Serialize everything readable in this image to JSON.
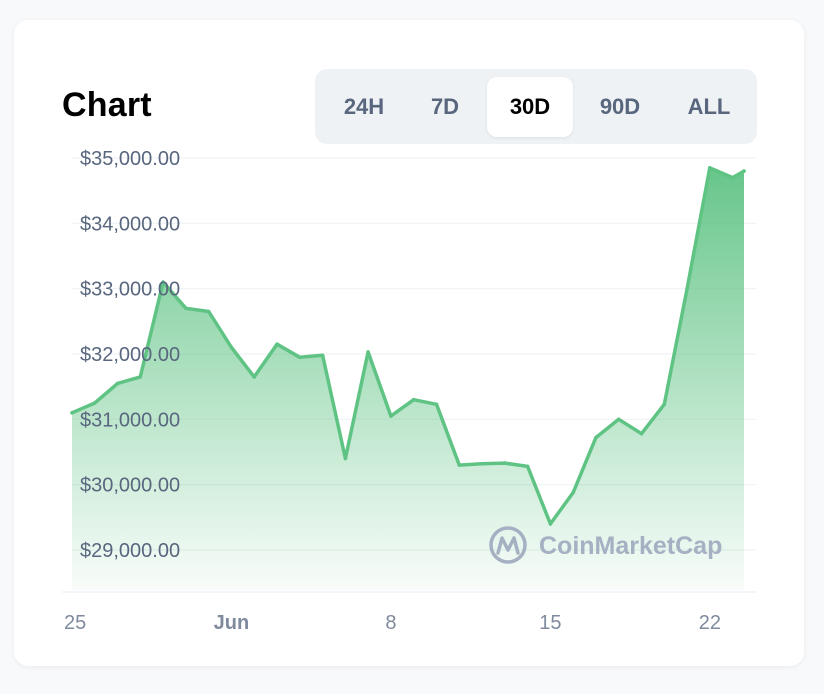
{
  "header": {
    "title": "Chart"
  },
  "range_selector": {
    "options": [
      "24H",
      "7D",
      "30D",
      "90D",
      "ALL"
    ],
    "active": "30D"
  },
  "watermark": {
    "text": "CoinMarketCap"
  },
  "colors": {
    "line": "#5fc384",
    "fill_top": "#5fc384",
    "grid": "#eff2f5",
    "tick": "#58667e"
  },
  "chart_data": {
    "type": "area",
    "title": "Chart",
    "x": [
      "2021-05-25",
      "2021-05-26",
      "2021-05-27",
      "2021-05-28",
      "2021-05-29",
      "2021-05-30",
      "2021-05-31",
      "2021-06-01",
      "2021-06-02",
      "2021-06-03",
      "2021-06-04",
      "2021-06-05",
      "2021-06-06",
      "2021-06-07",
      "2021-06-08",
      "2021-06-09",
      "2021-06-10",
      "2021-06-11",
      "2021-06-12",
      "2021-06-13",
      "2021-06-14",
      "2021-06-15",
      "2021-06-16",
      "2021-06-17",
      "2021-06-18",
      "2021-06-19",
      "2021-06-20",
      "2021-06-21",
      "2021-06-22",
      "2021-06-23"
    ],
    "values": [
      31100,
      31250,
      31550,
      31650,
      33100,
      32700,
      32650,
      32100,
      31650,
      32150,
      31950,
      31980,
      30400,
      32030,
      31050,
      31300,
      31230,
      30300,
      30320,
      30330,
      30280,
      29400,
      29880,
      30720,
      31000,
      30780,
      31230,
      33000,
      34850,
      34700
    ],
    "values_extra": {
      "x": "2021-06-23T12:00",
      "value": 34800
    },
    "yticks": [
      35000,
      34000,
      33000,
      32000,
      31000,
      30000,
      29000
    ],
    "ytick_labels": [
      "$35,000.00",
      "$34,000.00",
      "$33,000.00",
      "$32,000.00",
      "$31,000.00",
      "$30,000.00",
      "$29,000.00"
    ],
    "xticks": [
      {
        "x": "2021-05-25",
        "label": "25",
        "bold": false
      },
      {
        "x": "2021-06-01",
        "label": "Jun",
        "bold": true
      },
      {
        "x": "2021-06-08",
        "label": "8",
        "bold": false
      },
      {
        "x": "2021-06-15",
        "label": "15",
        "bold": false
      },
      {
        "x": "2021-06-22",
        "label": "22",
        "bold": false
      }
    ],
    "ylim": [
      28300,
      35000
    ],
    "grid": true,
    "legend": "none"
  }
}
